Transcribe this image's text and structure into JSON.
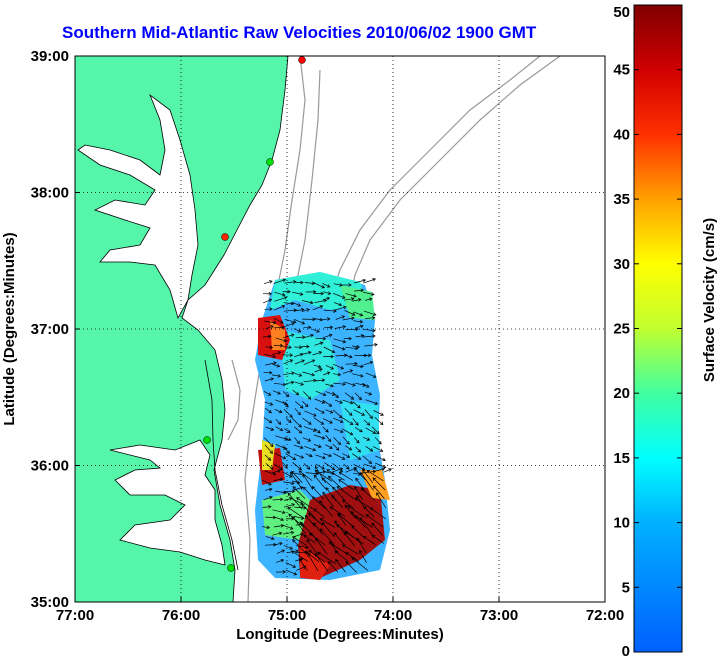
{
  "chart_data": {
    "type": "heatmap",
    "title": "Southern Mid-Atlantic Raw Velocities 2010/06/02 1900 GMT",
    "xlabel": "Longitude (Degrees:Minutes)",
    "ylabel": "Latitude (Degrees:Minutes)",
    "colorbar_label": "Surface Velocity (cm/s)",
    "x_ticks": [
      "77:00",
      "76:00",
      "75:00",
      "74:00",
      "73:00",
      "72:00"
    ],
    "y_ticks": [
      "39:00",
      "38:00",
      "37:00",
      "36:00",
      "35:00"
    ],
    "colorbar_ticks": [
      "50",
      "45",
      "40",
      "35",
      "30",
      "25",
      "20",
      "15",
      "10",
      "5",
      "0"
    ],
    "xlim": [
      -77.0,
      -72.0
    ],
    "ylim": [
      35.0,
      39.0
    ],
    "clim": [
      0,
      50
    ],
    "grid": true,
    "colors": {
      "title": "#0000ff",
      "land": "#55f5aa",
      "grid": "#000000",
      "bathymetry": "#999999"
    }
  }
}
